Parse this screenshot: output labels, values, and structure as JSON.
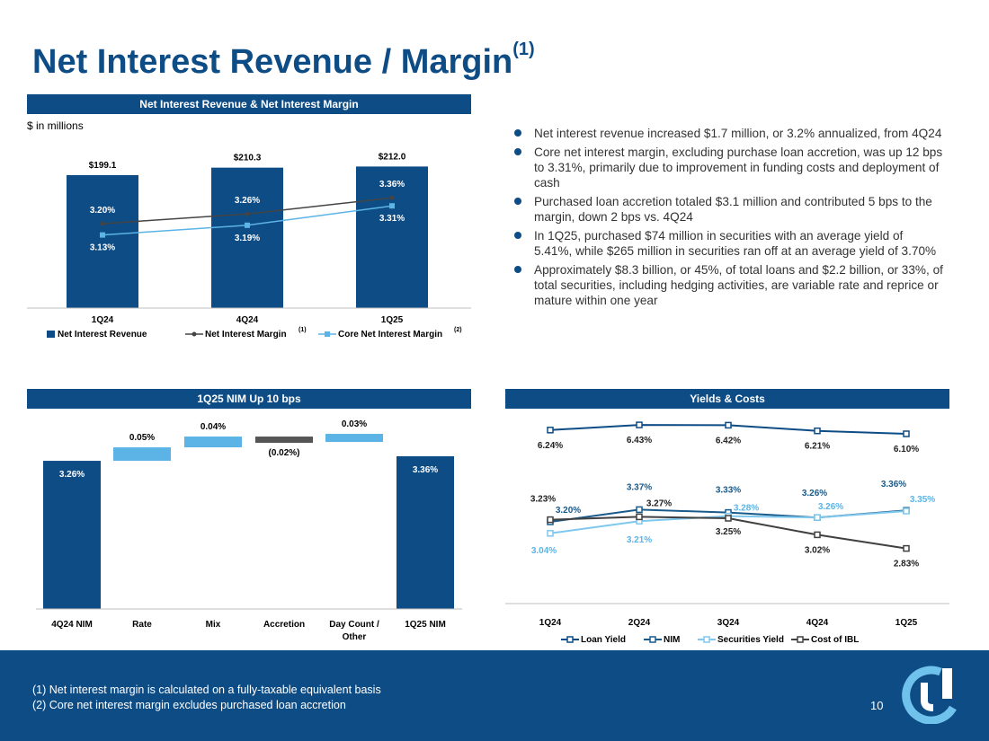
{
  "header": {
    "title": "Net Interest Revenue / Margin",
    "title_sup": "(1)"
  },
  "chart_data": [
    {
      "type": "bar",
      "title": "Net Interest Revenue & Net Interest Margin",
      "subtitle": "$ in millions",
      "categories": [
        "1Q24",
        "4Q24",
        "1Q25"
      ],
      "series": [
        {
          "name": "Net Interest Revenue",
          "values": [
            199.1,
            210.3,
            212.0
          ],
          "labels": [
            "$199.1",
            "$210.3",
            "$212.0"
          ],
          "color": "#0e4c85"
        },
        {
          "name": "Net Interest Margin",
          "type": "line",
          "values": [
            3.2,
            3.26,
            3.36
          ],
          "labels": [
            "3.20%",
            "3.26%",
            "3.36%"
          ],
          "color": "#444444"
        },
        {
          "name": "Core Net Interest Margin",
          "type": "line",
          "values": [
            3.13,
            3.19,
            3.31
          ],
          "labels": [
            "3.13%",
            "3.19%",
            "3.31%"
          ],
          "color": "#5bb4e5"
        }
      ],
      "legend": [
        {
          "label": "Net Interest Revenue",
          "sup": ""
        },
        {
          "label": "Net Interest Margin",
          "sup": "(1)"
        },
        {
          "label": "Core Net Interest Margin",
          "sup": "(2)"
        }
      ],
      "ylim": [
        0,
        230
      ],
      "legend_position": "bottom"
    },
    {
      "type": "waterfall",
      "title": "1Q25 NIM Up 10 bps",
      "categories": [
        "4Q24 NIM",
        "Rate",
        "Mix",
        "Accretion",
        "Day Count / Other",
        "1Q25 NIM"
      ],
      "values": [
        3.26,
        0.05,
        0.04,
        -0.02,
        0.03,
        3.36
      ],
      "labels": [
        "3.26%",
        "0.05%",
        "0.04%",
        "(0.02%)",
        "0.03%",
        "3.36%"
      ],
      "kinds": [
        "total",
        "delta",
        "delta",
        "delta",
        "delta",
        "total"
      ],
      "colors": {
        "total": "#0e4c85",
        "increase": "#5bb4e5",
        "decrease": "#555555"
      }
    },
    {
      "type": "line",
      "title": "Yields & Costs",
      "categories": [
        "1Q24",
        "2Q24",
        "3Q24",
        "4Q24",
        "1Q25"
      ],
      "series": [
        {
          "name": "Loan Yield",
          "values": [
            6.24,
            6.43,
            6.42,
            6.21,
            6.1
          ],
          "labels": [
            "6.24%",
            "6.43%",
            "6.42%",
            "6.21%",
            "6.10%"
          ],
          "color": "#0e4c85"
        },
        {
          "name": "NIM",
          "values": [
            3.2,
            3.37,
            3.33,
            3.26,
            3.36
          ],
          "labels": [
            "3.20%",
            "3.37%",
            "3.33%",
            "3.26%",
            "3.36%"
          ],
          "color": "#1a5a8a"
        },
        {
          "name": "Securities Yield",
          "values": [
            3.04,
            3.21,
            3.28,
            3.26,
            3.35
          ],
          "labels": [
            "3.04%",
            "3.21%",
            "3.28%",
            "3.26%",
            "3.35%"
          ],
          "color": "#7ec8ee"
        },
        {
          "name": "Cost of IBL",
          "values": [
            3.23,
            3.27,
            3.25,
            3.02,
            2.83
          ],
          "labels": [
            "3.23%",
            "3.27%",
            "3.25%",
            "3.02%",
            "2.83%"
          ],
          "color": "#404040"
        }
      ],
      "legend_position": "bottom"
    }
  ],
  "bullets": [
    "Net interest revenue increased $1.7 million, or 3.2% annualized, from 4Q24",
    "Core net interest margin, excluding purchase loan accretion, was up 12 bps to 3.31%, primarily due to improvement in funding costs and deployment of cash",
    "Purchased loan accretion totaled $3.1 million and contributed 5 bps to the margin, down 2 bps vs. 4Q24",
    "In 1Q25, purchased $74 million in securities with an average yield of 5.41%, while $265 million in securities ran off at an average yield of 3.70%",
    "Approximately $8.3 billion, or 45%, of total loans and $2.2 billion, or 33%, of total securities, including hedging activities, are variable rate and reprice or mature within one year"
  ],
  "footer": {
    "note1": "(1) Net interest margin is calculated on a fully-taxable equivalent basis",
    "note2": "(2) Core net interest margin excludes purchased loan accretion",
    "page": "10"
  },
  "colors": {
    "brand": "#0e4c85",
    "accent": "#5bb4e5",
    "dark": "#444444"
  }
}
